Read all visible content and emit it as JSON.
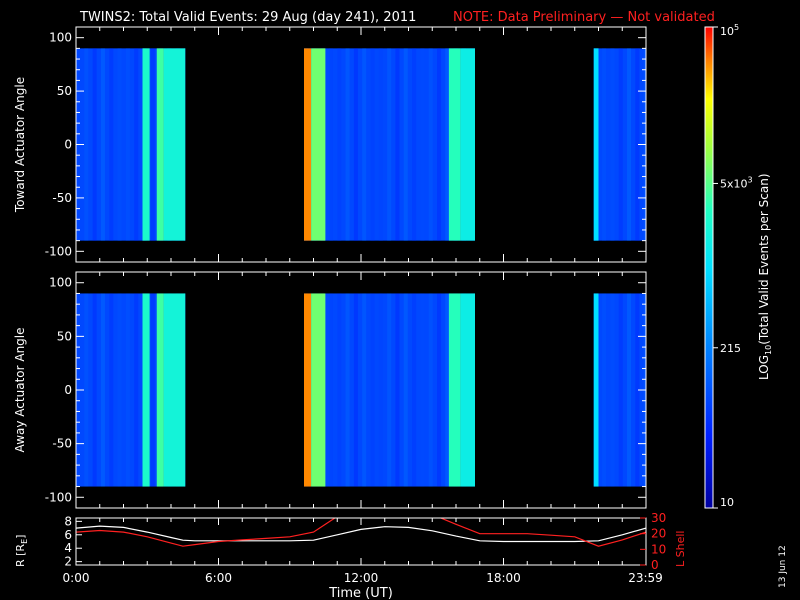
{
  "title": {
    "main": "TWINS2: Total Valid Events: 29 Aug (day 241), 2011",
    "note": "NOTE: Data Preliminary — Not validated"
  },
  "footer_date": "13 Jun 12",
  "colorbar": {
    "label": "LOG10(Total Valid Events per Scan)",
    "label_main": "LOG",
    "label_sub": "10",
    "label_rest": "(Total Valid Events per Scan)",
    "ticks": [
      {
        "value": 10,
        "text": "10"
      },
      {
        "value": 215,
        "text": "215"
      },
      {
        "value": 5000,
        "text": "5x10",
        "sup": "3"
      },
      {
        "value": 100000,
        "text": "10",
        "sup": "5"
      }
    ],
    "range": [
      10,
      100000
    ],
    "scale": "log"
  },
  "chart_data": [
    {
      "type": "heatmap",
      "ylabel": "Toward Actuator Angle",
      "ylim": [
        -110,
        110
      ],
      "yticks": [
        100,
        50,
        0,
        -50,
        -100
      ],
      "xlim": [
        0,
        24
      ],
      "data_angle_range": [
        -90,
        90
      ],
      "data_segments": [
        {
          "t_start": 0.0,
          "t_end": 4.6
        },
        {
          "t_start": 9.6,
          "t_end": 16.8
        },
        {
          "t_start": 21.8,
          "t_end": 24.0
        }
      ],
      "bright_bands": [
        {
          "t_start": 2.8,
          "t_end": 3.1,
          "level": 3.4
        },
        {
          "t_start": 3.4,
          "t_end": 3.7,
          "level": 3.6
        },
        {
          "t_start": 3.7,
          "t_end": 4.6,
          "level": 3.3
        },
        {
          "t_start": 9.6,
          "t_end": 9.9,
          "level": 4.7
        },
        {
          "t_start": 9.9,
          "t_end": 10.5,
          "level": 3.8
        },
        {
          "t_start": 15.7,
          "t_end": 16.2,
          "level": 3.5
        },
        {
          "t_start": 16.2,
          "t_end": 16.8,
          "level": 3.2
        },
        {
          "t_start": 21.8,
          "t_end": 22.0,
          "level": 3.0
        }
      ],
      "background_level": 1.9
    },
    {
      "type": "heatmap",
      "ylabel": "Away Actuator Angle",
      "ylim": [
        -110,
        110
      ],
      "yticks": [
        100,
        50,
        0,
        -50,
        -100
      ],
      "xlim": [
        0,
        24
      ],
      "data_angle_range": [
        -90,
        90
      ],
      "data_segments": [
        {
          "t_start": 0.0,
          "t_end": 4.6
        },
        {
          "t_start": 9.6,
          "t_end": 16.8
        },
        {
          "t_start": 21.8,
          "t_end": 24.0
        }
      ],
      "bright_bands": [
        {
          "t_start": 2.8,
          "t_end": 3.1,
          "level": 3.4
        },
        {
          "t_start": 3.4,
          "t_end": 3.7,
          "level": 3.6
        },
        {
          "t_start": 3.7,
          "t_end": 4.6,
          "level": 3.3
        },
        {
          "t_start": 9.6,
          "t_end": 9.9,
          "level": 4.7
        },
        {
          "t_start": 9.9,
          "t_end": 10.5,
          "level": 3.8
        },
        {
          "t_start": 15.7,
          "t_end": 16.2,
          "level": 3.5
        },
        {
          "t_start": 16.2,
          "t_end": 16.8,
          "level": 3.2
        },
        {
          "t_start": 21.8,
          "t_end": 22.0,
          "level": 3.0
        }
      ],
      "background_level": 1.9
    },
    {
      "type": "line",
      "xlabel": "Time (UT)",
      "xlim": [
        0,
        24
      ],
      "xticks": [
        {
          "value": 0,
          "text": "0:00"
        },
        {
          "value": 6,
          "text": "6:00"
        },
        {
          "value": 12,
          "text": "12:00"
        },
        {
          "value": 18,
          "text": "18:00"
        },
        {
          "value": 23.98,
          "text": "23:59"
        }
      ],
      "ylabel_left": "R [R",
      "ylabel_left_sub": "E",
      "ylabel_left_close": "]",
      "ylim_left": [
        1.5,
        8.5
      ],
      "yticks_left": [
        2,
        4,
        6,
        8
      ],
      "ylabel_right": "L Shell",
      "ylim_right": [
        0,
        30
      ],
      "yticks_right": [
        0,
        10,
        20,
        30
      ],
      "series": [
        {
          "axis": "left",
          "color": "#ffffff",
          "x": [
            0,
            1,
            2,
            3,
            4,
            4.5,
            5,
            6,
            7,
            8,
            9,
            10,
            11,
            12,
            13,
            14,
            15,
            16,
            17,
            18,
            19,
            20,
            21,
            22,
            23,
            24
          ],
          "y": [
            7.0,
            7.3,
            7.1,
            6.4,
            5.6,
            5.2,
            5.1,
            5.1,
            5.1,
            5.1,
            5.1,
            5.2,
            6.0,
            6.8,
            7.2,
            7.1,
            6.6,
            5.8,
            5.1,
            5.0,
            5.0,
            5.0,
            5.0,
            5.1,
            6.0,
            7.0
          ]
        },
        {
          "axis": "right",
          "color": "#ff2020",
          "x": [
            0,
            1,
            2,
            3,
            4,
            4.5,
            5,
            6,
            7,
            8,
            9,
            10,
            10.5,
            11,
            15.2,
            16,
            17,
            18,
            19,
            20,
            21,
            22,
            23,
            24
          ],
          "y": [
            21,
            22,
            21,
            18,
            14,
            12,
            13,
            15,
            16,
            17,
            18,
            21,
            26,
            31,
            31,
            26,
            20,
            20,
            20,
            19,
            18,
            12,
            16,
            21
          ]
        }
      ]
    }
  ]
}
